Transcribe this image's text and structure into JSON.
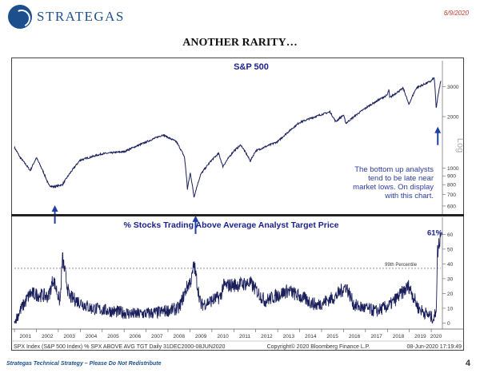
{
  "header": {
    "logo_text": "STRATEGAS",
    "date": "6/9/2020",
    "title": "ANOTHER RARITY…"
  },
  "colors": {
    "brand": "#1d4f8c",
    "line": "#1a1f5c",
    "panel_title": "#1a1f8c",
    "annotation": "#2e3b9e",
    "arrow": "#1d3fa0",
    "date": "#c0392b"
  },
  "chart_data": [
    {
      "type": "line",
      "title": "S&P 500",
      "scale": "log",
      "axis_label": "Log",
      "yticks": [
        600,
        700,
        800,
        900,
        1000,
        2000,
        3000
      ],
      "ylim": [
        550,
        3500
      ],
      "x": [
        "2000-12-31",
        "2001-04-01",
        "2001-09-21",
        "2002-01-01",
        "2002-07-23",
        "2002-10-09",
        "2003-03-11",
        "2003-12-31",
        "2004-12-31",
        "2005-12-31",
        "2006-12-31",
        "2007-10-09",
        "2008-05-19",
        "2008-09-30",
        "2008-11-20",
        "2009-01-06",
        "2009-03-09",
        "2009-06-30",
        "2009-12-31",
        "2010-04-23",
        "2010-07-02",
        "2010-12-31",
        "2011-04-29",
        "2011-10-03",
        "2011-12-30",
        "2012-12-31",
        "2013-12-31",
        "2014-12-31",
        "2015-05-21",
        "2015-08-25",
        "2015-12-31",
        "2016-02-11",
        "2016-12-30",
        "2017-12-29",
        "2018-01-26",
        "2018-02-08",
        "2018-09-20",
        "2018-12-24",
        "2019-04-30",
        "2019-12-31",
        "2020-02-19",
        "2020-03-23",
        "2020-06-08"
      ],
      "y": [
        1320,
        1160,
        966,
        1148,
        797,
        776,
        800,
        1112,
        1212,
        1248,
        1418,
        1565,
        1426,
        1166,
        752,
        935,
        676,
        919,
        1115,
        1217,
        1022,
        1258,
        1364,
        1099,
        1258,
        1426,
        1848,
        2059,
        2131,
        1868,
        2044,
        1829,
        2239,
        2674,
        2873,
        2581,
        2931,
        2351,
        2946,
        3231,
        3386,
        2237,
        3232
      ],
      "annotation": "The bottom up analysts tend to be late near market lows.  On display with this chart.",
      "arrows_at": [
        "2002-10-09",
        "2009-03-09",
        "2020-03-23"
      ]
    },
    {
      "type": "line",
      "title": "% Stocks Trading Above Average Analyst Target Price",
      "yticks": [
        0,
        10,
        20,
        30,
        40,
        50,
        60
      ],
      "ylim": [
        -3,
        64
      ],
      "reference_line": {
        "value": 37,
        "label": "99th Percentile"
      },
      "last_value_label": "61%",
      "x": [
        "2000-12-31",
        "2001-03-30",
        "2001-09-21",
        "2002-07-23",
        "2002-10-09",
        "2003-01-31",
        "2003-03-11",
        "2003-06-30",
        "2004-06-30",
        "2005-06-30",
        "2006-06-30",
        "2007-06-30",
        "2008-06-30",
        "2008-11-20",
        "2009-01-31",
        "2009-03-09",
        "2009-06-30",
        "2010-05-31",
        "2010-07-02",
        "2011-10-03",
        "2012-06-01",
        "2013-06-24",
        "2014-10-15",
        "2015-08-25",
        "2016-02-11",
        "2016-06-27",
        "2017-06-30",
        "2018-02-08",
        "2018-12-24",
        "2019-06-03",
        "2019-12-31",
        "2020-02-19",
        "2020-03-23",
        "2020-04-15",
        "2020-06-08"
      ],
      "y": [
        0,
        8,
        20,
        18,
        30,
        14,
        44,
        18,
        10,
        8,
        6,
        7,
        10,
        25,
        30,
        40,
        12,
        18,
        25,
        27,
        15,
        22,
        12,
        18,
        25,
        12,
        8,
        12,
        25,
        10,
        4,
        3,
        10,
        48,
        61
      ],
      "xticks": [
        "2001",
        "2002",
        "2003",
        "2004",
        "2005",
        "2006",
        "2007",
        "2008",
        "2009",
        "2010",
        "2011",
        "2012",
        "2013",
        "2014",
        "2015",
        "2016",
        "2017",
        "2018",
        "2019",
        "2020"
      ]
    }
  ],
  "bloomberg": {
    "left": "SPX Index (S&P 500 Index) % SPX ABOVE AVG TGT  Daily 31DEC2000-08JUN2020",
    "center": "Copyright© 2020 Bloomberg Finance L.P.",
    "right": "08-Jun-2020 17:19:49"
  },
  "footer": {
    "left": "Strategas Technical Strategy – Please Do Not Redistribute",
    "page": "4"
  }
}
